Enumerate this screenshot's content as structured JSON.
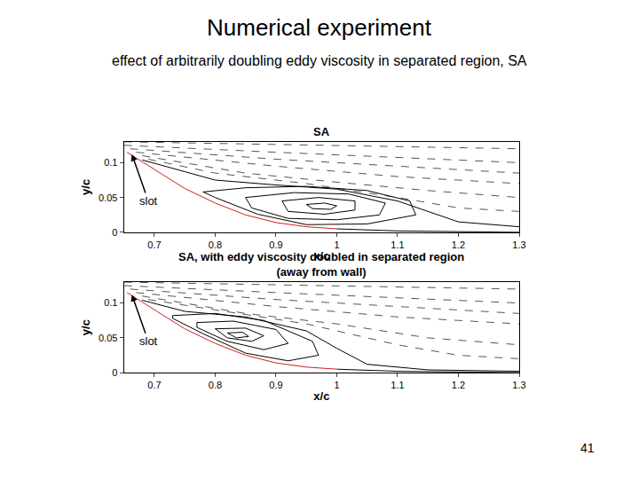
{
  "slide": {
    "title": "Numerical experiment",
    "subtitle": "effect of arbitrarily doubling eddy viscosity in separated region, SA",
    "page_number": "41"
  },
  "chart_data": [
    {
      "type": "line",
      "title": "SA",
      "x_label": "x/c",
      "y_label": "y/c",
      "xlim": [
        0.65,
        1.3
      ],
      "ylim": [
        0,
        0.13
      ],
      "xticks": [
        0.7,
        0.8,
        0.9,
        1,
        1.1,
        1.2,
        1.3
      ],
      "yticks": [
        0,
        0.05,
        0.1
      ],
      "grid": false,
      "annotations": [
        {
          "text": "slot",
          "x": 0.663,
          "y": 0.112,
          "text_x": 0.69,
          "text_y": 0.045
        }
      ],
      "series": [
        {
          "color": "#d02020",
          "line_style": "solid",
          "x": [
            0.655,
            0.7,
            0.75,
            0.8,
            0.85,
            0.9,
            0.95,
            1.0
          ],
          "values": [
            0.115,
            0.09,
            0.063,
            0.042,
            0.025,
            0.014,
            0.008,
            0.005
          ]
        },
        {
          "color": "#000000",
          "line_style": "solid",
          "x": [
            1.0,
            1.1,
            1.2,
            1.3
          ],
          "values": [
            0.005,
            0.002,
            0.001,
            0.0
          ]
        },
        {
          "color": "#555555",
          "line_style": "dash",
          "x": [
            0.65,
            1.3
          ],
          "values": [
            0.13,
            0.12
          ]
        },
        {
          "color": "#555555",
          "line_style": "dash",
          "x": [
            0.65,
            0.9,
            1.3
          ],
          "values": [
            0.125,
            0.115,
            0.1
          ]
        },
        {
          "color": "#555555",
          "line_style": "dash",
          "x": [
            0.66,
            0.9,
            1.1,
            1.3
          ],
          "values": [
            0.12,
            0.105,
            0.095,
            0.085
          ]
        },
        {
          "color": "#555555",
          "line_style": "dash",
          "x": [
            0.67,
            0.9,
            1.1,
            1.3
          ],
          "values": [
            0.115,
            0.095,
            0.08,
            0.07
          ]
        },
        {
          "color": "#555555",
          "line_style": "dash",
          "x": [
            0.68,
            0.85,
            1.0,
            1.15,
            1.3
          ],
          "values": [
            0.11,
            0.085,
            0.072,
            0.06,
            0.05
          ]
        },
        {
          "color": "#555555",
          "line_style": "dash",
          "x": [
            0.69,
            0.8,
            0.95,
            1.1,
            1.2,
            1.3
          ],
          "values": [
            0.105,
            0.085,
            0.07,
            0.05,
            0.035,
            0.03
          ]
        },
        {
          "color": "#000000",
          "line_style": "solid",
          "x": [
            0.68,
            0.8,
            0.9,
            1.0,
            1.1,
            1.15,
            1.2,
            1.3
          ],
          "values": [
            0.104,
            0.075,
            0.068,
            0.062,
            0.045,
            0.03,
            0.015,
            0.008
          ]
        },
        {
          "color": "#000000",
          "line_style": "solid",
          "x": [
            0.78,
            0.85,
            0.95,
            1.05,
            1.12,
            1.13,
            1.05,
            0.95,
            0.87,
            0.8,
            0.78
          ],
          "values": [
            0.058,
            0.064,
            0.066,
            0.06,
            0.045,
            0.025,
            0.012,
            0.011,
            0.026,
            0.05,
            0.058
          ]
        },
        {
          "color": "#000000",
          "line_style": "solid",
          "x": [
            0.85,
            0.93,
            1.02,
            1.08,
            1.07,
            1.0,
            0.92,
            0.86,
            0.85
          ],
          "values": [
            0.05,
            0.057,
            0.055,
            0.042,
            0.025,
            0.018,
            0.02,
            0.035,
            0.05
          ]
        },
        {
          "color": "#000000",
          "line_style": "solid",
          "x": [
            0.91,
            0.97,
            1.03,
            1.03,
            0.98,
            0.92,
            0.91
          ],
          "values": [
            0.045,
            0.05,
            0.045,
            0.032,
            0.026,
            0.03,
            0.045
          ]
        },
        {
          "color": "#000000",
          "line_style": "solid",
          "x": [
            0.95,
            0.98,
            1.0,
            0.99,
            0.96,
            0.95
          ],
          "values": [
            0.04,
            0.042,
            0.038,
            0.033,
            0.034,
            0.04
          ]
        }
      ]
    },
    {
      "type": "line",
      "title": "SA, with eddy viscosity doubled in separated region\n(away from wall)",
      "x_label": "x/c",
      "y_label": "y/c",
      "xlim": [
        0.65,
        1.3
      ],
      "ylim": [
        0,
        0.13
      ],
      "xticks": [
        0.7,
        0.8,
        0.9,
        1,
        1.1,
        1.2,
        1.3
      ],
      "yticks": [
        0,
        0.05,
        0.1
      ],
      "grid": false,
      "annotations": [
        {
          "text": "slot",
          "x": 0.663,
          "y": 0.112,
          "text_x": 0.69,
          "text_y": 0.045
        }
      ],
      "series": [
        {
          "color": "#d02020",
          "line_style": "solid",
          "x": [
            0.655,
            0.7,
            0.75,
            0.8,
            0.85,
            0.9,
            0.95,
            1.0
          ],
          "values": [
            0.115,
            0.09,
            0.063,
            0.042,
            0.025,
            0.014,
            0.008,
            0.005
          ]
        },
        {
          "color": "#000000",
          "line_style": "solid",
          "x": [
            1.0,
            1.1,
            1.2,
            1.3
          ],
          "values": [
            0.005,
            0.002,
            0.001,
            0.0
          ]
        },
        {
          "color": "#555555",
          "line_style": "dash",
          "x": [
            0.65,
            1.3
          ],
          "values": [
            0.13,
            0.12
          ]
        },
        {
          "color": "#555555",
          "line_style": "dash",
          "x": [
            0.65,
            0.9,
            1.3
          ],
          "values": [
            0.125,
            0.115,
            0.1
          ]
        },
        {
          "color": "#555555",
          "line_style": "dash",
          "x": [
            0.66,
            0.9,
            1.1,
            1.3
          ],
          "values": [
            0.12,
            0.105,
            0.095,
            0.085
          ]
        },
        {
          "color": "#555555",
          "line_style": "dash",
          "x": [
            0.67,
            0.9,
            1.1,
            1.3
          ],
          "values": [
            0.115,
            0.095,
            0.08,
            0.07
          ]
        },
        {
          "color": "#555555",
          "line_style": "dash",
          "x": [
            0.68,
            0.85,
            1.0,
            1.15,
            1.3
          ],
          "values": [
            0.11,
            0.085,
            0.07,
            0.05,
            0.04
          ]
        },
        {
          "color": "#555555",
          "line_style": "dash",
          "x": [
            0.69,
            0.8,
            0.95,
            1.1,
            1.2,
            1.3
          ],
          "values": [
            0.105,
            0.09,
            0.07,
            0.04,
            0.025,
            0.02
          ]
        },
        {
          "color": "#000000",
          "line_style": "solid",
          "x": [
            0.68,
            0.75,
            0.85,
            0.95,
            1.0,
            1.05,
            1.15,
            1.3
          ],
          "values": [
            0.104,
            0.088,
            0.08,
            0.06,
            0.035,
            0.012,
            0.004,
            0.002
          ]
        },
        {
          "color": "#000000",
          "line_style": "solid",
          "x": [
            0.73,
            0.8,
            0.88,
            0.96,
            0.97,
            0.92,
            0.85,
            0.78,
            0.73,
            0.73
          ],
          "values": [
            0.082,
            0.085,
            0.075,
            0.045,
            0.025,
            0.017,
            0.028,
            0.056,
            0.078,
            0.082
          ]
        },
        {
          "color": "#000000",
          "line_style": "solid",
          "x": [
            0.77,
            0.83,
            0.9,
            0.92,
            0.88,
            0.82,
            0.77,
            0.77
          ],
          "values": [
            0.072,
            0.074,
            0.062,
            0.042,
            0.033,
            0.045,
            0.065,
            0.072
          ]
        },
        {
          "color": "#000000",
          "line_style": "solid",
          "x": [
            0.8,
            0.85,
            0.88,
            0.86,
            0.82,
            0.8
          ],
          "values": [
            0.063,
            0.064,
            0.053,
            0.045,
            0.05,
            0.063
          ]
        },
        {
          "color": "#000000",
          "line_style": "solid",
          "x": [
            0.82,
            0.845,
            0.855,
            0.835,
            0.82
          ],
          "values": [
            0.057,
            0.058,
            0.052,
            0.05,
            0.057
          ]
        }
      ]
    }
  ]
}
